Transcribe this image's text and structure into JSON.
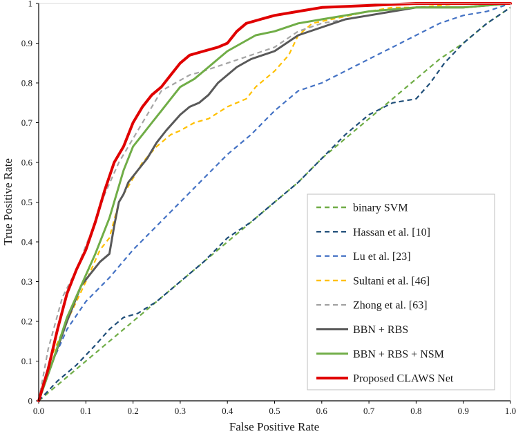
{
  "chart_data": {
    "type": "line",
    "title": "",
    "xlabel": "False Positive Rate",
    "ylabel": "True Positive Rate",
    "xlim": [
      0,
      1
    ],
    "ylim": [
      0,
      1
    ],
    "x_ticks": [
      "0.0",
      "0.1",
      "0.2",
      "0.3",
      "0.4",
      "0.5",
      "0.6",
      "0.7",
      "0.8",
      "0.9",
      "1.0"
    ],
    "y_ticks": [
      "0",
      "0.1",
      "0.2",
      "0.3",
      "0.4",
      "0.5",
      "0.6",
      "0.7",
      "0.8",
      "0.9",
      "1"
    ],
    "grid": false,
    "legend_position": "bottom-right",
    "series": [
      {
        "name": "binary SVM",
        "color": "#70ad47",
        "dash": true,
        "x": [
          0,
          0.05,
          0.1,
          0.15,
          0.2,
          0.25,
          0.3,
          0.35,
          0.4,
          0.45,
          0.5,
          0.55,
          0.6,
          0.65,
          0.7,
          0.75,
          0.8,
          0.85,
          0.9,
          0.95,
          1.0
        ],
        "y": [
          0,
          0.05,
          0.1,
          0.15,
          0.2,
          0.25,
          0.3,
          0.35,
          0.4,
          0.45,
          0.5,
          0.55,
          0.61,
          0.66,
          0.71,
          0.76,
          0.81,
          0.86,
          0.9,
          0.95,
          0.99
        ]
      },
      {
        "name": "Hassan et al. [10]",
        "color": "#1f4e79",
        "dash": true,
        "x": [
          0,
          0.04,
          0.08,
          0.12,
          0.15,
          0.18,
          0.21,
          0.25,
          0.3,
          0.35,
          0.4,
          0.45,
          0.5,
          0.55,
          0.6,
          0.65,
          0.7,
          0.75,
          0.8,
          0.83,
          0.86,
          0.9,
          0.95,
          1.0
        ],
        "y": [
          0,
          0.05,
          0.09,
          0.14,
          0.18,
          0.21,
          0.22,
          0.25,
          0.3,
          0.35,
          0.41,
          0.45,
          0.5,
          0.55,
          0.61,
          0.67,
          0.72,
          0.75,
          0.76,
          0.8,
          0.85,
          0.9,
          0.95,
          0.99
        ]
      },
      {
        "name": "Lu et al. [23]",
        "color": "#4472c4",
        "dash": true,
        "x": [
          0,
          0.03,
          0.06,
          0.1,
          0.15,
          0.2,
          0.25,
          0.3,
          0.35,
          0.4,
          0.45,
          0.5,
          0.55,
          0.6,
          0.65,
          0.7,
          0.75,
          0.8,
          0.85,
          0.9,
          0.95,
          1.0
        ],
        "y": [
          0,
          0.1,
          0.18,
          0.25,
          0.31,
          0.38,
          0.44,
          0.5,
          0.56,
          0.62,
          0.67,
          0.73,
          0.78,
          0.8,
          0.83,
          0.86,
          0.89,
          0.92,
          0.95,
          0.97,
          0.98,
          1.0
        ]
      },
      {
        "name": "Sultani et al. [46]",
        "color": "#ffc000",
        "dash": true,
        "x": [
          0,
          0.03,
          0.06,
          0.1,
          0.13,
          0.15,
          0.17,
          0.2,
          0.22,
          0.25,
          0.28,
          0.3,
          0.33,
          0.36,
          0.4,
          0.44,
          0.46,
          0.5,
          0.53,
          0.55,
          0.58,
          0.62,
          0.66,
          0.7,
          0.75,
          0.8,
          0.9,
          1.0
        ],
        "y": [
          0,
          0.12,
          0.2,
          0.3,
          0.38,
          0.41,
          0.5,
          0.56,
          0.6,
          0.64,
          0.67,
          0.68,
          0.7,
          0.71,
          0.74,
          0.76,
          0.79,
          0.83,
          0.87,
          0.92,
          0.95,
          0.96,
          0.97,
          0.98,
          0.99,
          0.99,
          1.0,
          1.0
        ]
      },
      {
        "name": "Zhong et al. [63]",
        "color": "#a5a5a5",
        "dash": true,
        "x": [
          0,
          0.02,
          0.05,
          0.08,
          0.11,
          0.14,
          0.17,
          0.2,
          0.23,
          0.26,
          0.29,
          0.32,
          0.35,
          0.4,
          0.45,
          0.5,
          0.55,
          0.6,
          0.7,
          0.8,
          0.9,
          1.0
        ],
        "y": [
          0,
          0.13,
          0.26,
          0.33,
          0.42,
          0.52,
          0.6,
          0.66,
          0.72,
          0.78,
          0.8,
          0.82,
          0.83,
          0.85,
          0.87,
          0.89,
          0.93,
          0.95,
          0.97,
          0.99,
          0.99,
          1.0
        ]
      },
      {
        "name": "BBN + RBS",
        "color": "#595959",
        "dash": false,
        "x": [
          0,
          0.03,
          0.06,
          0.09,
          0.11,
          0.13,
          0.15,
          0.16,
          0.17,
          0.18,
          0.19,
          0.21,
          0.23,
          0.25,
          0.27,
          0.3,
          0.32,
          0.34,
          0.36,
          0.38,
          0.4,
          0.42,
          0.45,
          0.5,
          0.55,
          0.6,
          0.65,
          0.7,
          0.75,
          0.8,
          0.9,
          1.0
        ],
        "y": [
          0,
          0.1,
          0.2,
          0.29,
          0.32,
          0.35,
          0.37,
          0.44,
          0.5,
          0.52,
          0.55,
          0.58,
          0.61,
          0.65,
          0.68,
          0.72,
          0.74,
          0.75,
          0.77,
          0.8,
          0.82,
          0.84,
          0.86,
          0.88,
          0.92,
          0.94,
          0.96,
          0.97,
          0.98,
          0.99,
          0.99,
          1.0
        ]
      },
      {
        "name": "BBN + RBS + NSM",
        "color": "#70ad47",
        "dash": false,
        "x": [
          0,
          0.03,
          0.06,
          0.09,
          0.12,
          0.15,
          0.18,
          0.2,
          0.22,
          0.24,
          0.26,
          0.28,
          0.3,
          0.33,
          0.36,
          0.38,
          0.4,
          0.43,
          0.46,
          0.5,
          0.55,
          0.6,
          0.65,
          0.7,
          0.8,
          0.9,
          1.0
        ],
        "y": [
          0,
          0.1,
          0.21,
          0.29,
          0.37,
          0.46,
          0.58,
          0.64,
          0.67,
          0.7,
          0.73,
          0.76,
          0.79,
          0.81,
          0.84,
          0.86,
          0.88,
          0.9,
          0.92,
          0.93,
          0.95,
          0.96,
          0.97,
          0.98,
          0.99,
          0.99,
          1.0
        ]
      },
      {
        "name": "Proposed CLAWS Net",
        "color": "#e00000",
        "dash": false,
        "x": [
          0,
          0.02,
          0.04,
          0.06,
          0.08,
          0.1,
          0.12,
          0.14,
          0.16,
          0.18,
          0.2,
          0.22,
          0.24,
          0.26,
          0.28,
          0.3,
          0.32,
          0.35,
          0.38,
          0.4,
          0.42,
          0.44,
          0.47,
          0.5,
          0.55,
          0.6,
          0.7,
          0.8,
          0.9,
          1.0
        ],
        "y": [
          0,
          0.08,
          0.18,
          0.27,
          0.33,
          0.38,
          0.45,
          0.53,
          0.6,
          0.64,
          0.7,
          0.74,
          0.77,
          0.79,
          0.82,
          0.85,
          0.87,
          0.88,
          0.89,
          0.9,
          0.93,
          0.95,
          0.96,
          0.97,
          0.98,
          0.99,
          0.995,
          1.0,
          1.0,
          1.0
        ]
      }
    ]
  }
}
